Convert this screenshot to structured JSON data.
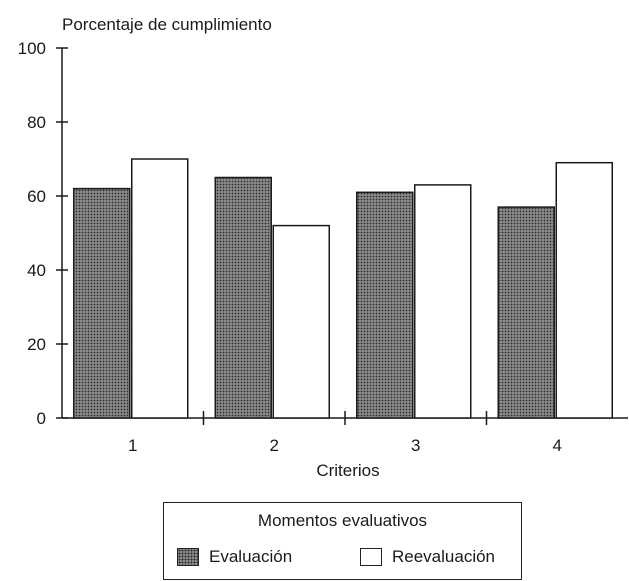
{
  "chart_data": {
    "type": "bar",
    "ylabel": "Porcentaje de cumplimiento",
    "xlabel": "Criterios",
    "categories": [
      "1",
      "2",
      "3",
      "4"
    ],
    "ylim": [
      0,
      100
    ],
    "yticks": [
      "0",
      "20",
      "40",
      "60",
      "80",
      "100"
    ],
    "grid": false,
    "series": [
      {
        "name": "Evaluación",
        "values": [
          62,
          65,
          61,
          57
        ],
        "fill": "hatched-gray"
      },
      {
        "name": "Reevaluación",
        "values": [
          70,
          52,
          63,
          69
        ],
        "fill": "#ffffff"
      }
    ],
    "legend": {
      "title": "Momentos evaluativos",
      "placement": "bottom-center"
    }
  }
}
